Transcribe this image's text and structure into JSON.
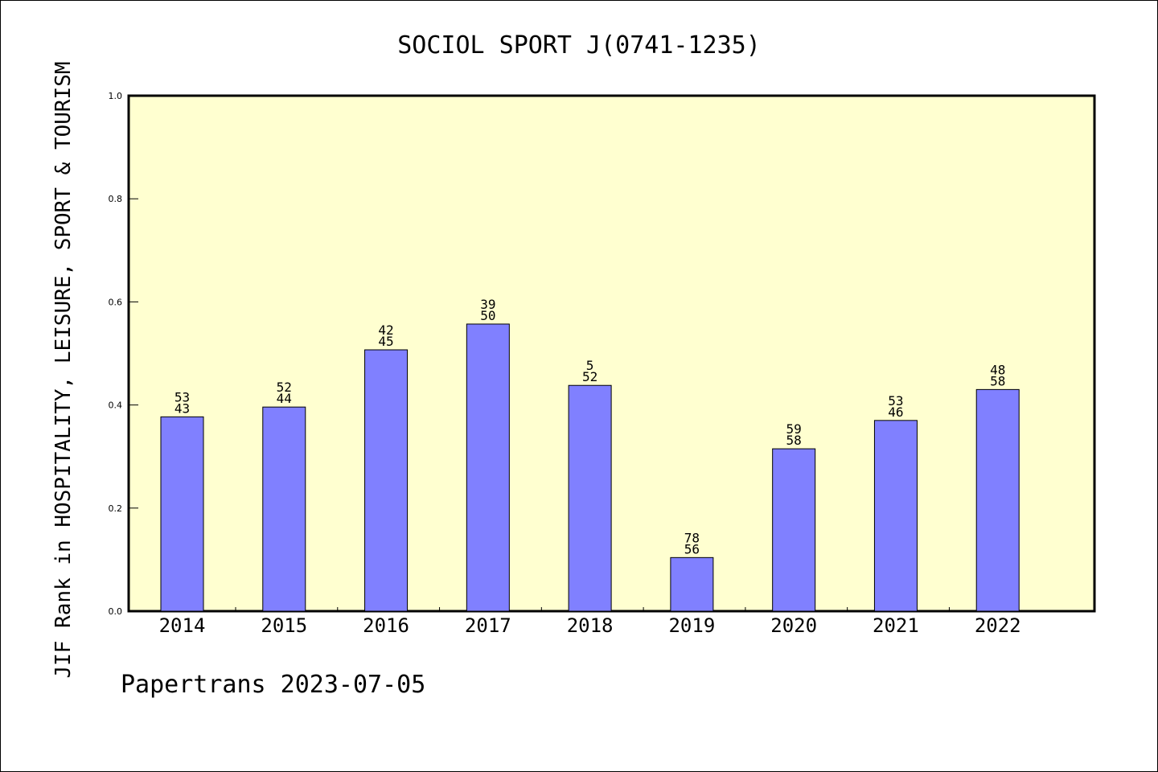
{
  "chart_data": {
    "type": "bar",
    "title": "SOCIOL SPORT J(0741-1235)",
    "ylabel": "JIF Rank in HOSPITALITY, LEISURE, SPORT & TOURISM",
    "xlabel": "",
    "categories": [
      "2014",
      "2015",
      "2016",
      "2017",
      "2018",
      "2019",
      "2020",
      "2021",
      "2022"
    ],
    "values": [
      0.377,
      0.396,
      0.507,
      0.557,
      0.438,
      0.104,
      0.315,
      0.37,
      0.43
    ],
    "bar_labels": [
      [
        "53",
        "43"
      ],
      [
        "52",
        "44"
      ],
      [
        "42",
        "45"
      ],
      [
        "39",
        "50"
      ],
      [
        "5",
        "52"
      ],
      [
        "78",
        "56"
      ],
      [
        "59",
        "58"
      ],
      [
        "53",
        "46"
      ],
      [
        "48",
        "58"
      ]
    ],
    "ylim": [
      0,
      1.0
    ],
    "yticks": [
      "0.0",
      "0.2",
      "0.4",
      "0.6",
      "0.8",
      "1.0"
    ],
    "grid": false,
    "plot_background": "#ffffd0",
    "bar_color": "#8080ff",
    "bar_edge_color": "#000000"
  },
  "footer": {
    "text": "Papertrans 2023-07-05"
  }
}
